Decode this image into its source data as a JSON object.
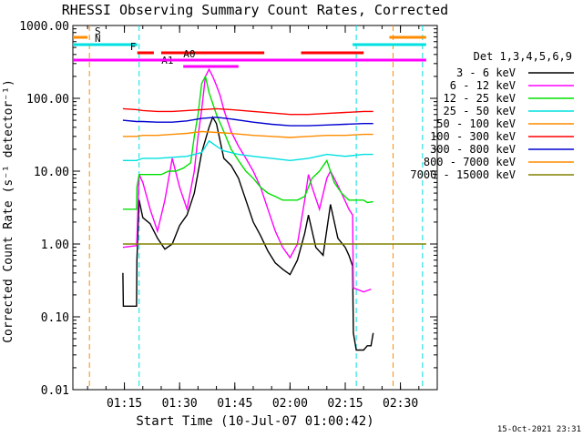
{
  "chart_data": {
    "type": "line",
    "title": "RHESSI Observing Summary Count Rates, Corrected",
    "xlabel": "Start Time (10-Jul-07 01:00:42)",
    "ylabel": "Corrected Count Rate (s⁻¹ detector⁻¹)",
    "yscale": "log",
    "ylim": [
      0.01,
      1000
    ],
    "xlim_minutes": [
      1.0,
      100.0
    ],
    "x_ticks": [
      "01:15",
      "01:30",
      "01:45",
      "02:00",
      "02:15",
      "02:30"
    ],
    "y_ticks": [
      "1000.00",
      "100.00",
      "10.00",
      "1.00",
      "0.10",
      "0.01"
    ],
    "date_stamp": "15-Oct-2021 23:31",
    "legend": {
      "title": "Det 1,3,4,5,6,9",
      "placement": "right"
    },
    "flags": [
      {
        "label": "S",
        "color": "#ff8c00",
        "spans": [
          [
            1,
            5
          ],
          [
            87,
            97
          ]
        ]
      },
      {
        "label": "N",
        "color": "#00e0e0",
        "spans": [
          [
            1,
            18.5
          ],
          [
            77,
            97
          ]
        ]
      },
      {
        "label": "F",
        "color": "#ff0000",
        "spans": [
          [
            18.5,
            23
          ],
          [
            25,
            53
          ],
          [
            63,
            80
          ]
        ]
      },
      {
        "label": "A0",
        "color": "#ff00ff",
        "spans": [
          [
            33,
            43
          ]
        ]
      },
      {
        "label": "A1",
        "color": "#ff00ff",
        "spans": [
          [
            31,
            46
          ]
        ]
      },
      {
        "label": "",
        "color": "#ff00ff",
        "spans": [
          [
            1,
            97
          ]
        ]
      }
    ],
    "vlines": [
      {
        "x": 5.5,
        "color": "#ff8c00"
      },
      {
        "x": 19,
        "color": "#00e0e0"
      },
      {
        "x": 78,
        "color": "#00e0e0"
      },
      {
        "x": 88,
        "color": "#ff8c00"
      },
      {
        "x": 96,
        "color": "#00e0e0"
      }
    ],
    "series": [
      {
        "name": "3 - 6 keV",
        "color": "#000000",
        "x": [
          14.6,
          14.7,
          18.3,
          18.4,
          19,
          20,
          22,
          24,
          26,
          28,
          30,
          32,
          34,
          36,
          38,
          39,
          40,
          42,
          44,
          46,
          48,
          50,
          52,
          54,
          56,
          58,
          60,
          62,
          64,
          65,
          67,
          69,
          71,
          73,
          75,
          76,
          77,
          77.2,
          78,
          80,
          81,
          82,
          82.6
        ],
        "y": [
          0.4,
          0.14,
          0.14,
          0.6,
          4,
          2.3,
          1.9,
          1.2,
          0.85,
          1.0,
          1.8,
          2.5,
          5,
          18,
          40,
          55,
          45,
          15,
          12,
          8,
          4,
          2,
          1.3,
          0.8,
          0.55,
          0.45,
          0.38,
          0.6,
          1.4,
          2.5,
          0.9,
          0.7,
          3.5,
          1.2,
          0.9,
          0.7,
          0.5,
          0.06,
          0.035,
          0.035,
          0.04,
          0.04,
          0.06
        ]
      },
      {
        "name": "6 - 12 keV",
        "color": "#ff00ff",
        "x": [
          14.6,
          18.3,
          18.4,
          19,
          20,
          22,
          24,
          26,
          28,
          30,
          32,
          34,
          35,
          36,
          37,
          38,
          39,
          40,
          41,
          42,
          44,
          46,
          48,
          50,
          52,
          54,
          56,
          58,
          60,
          62,
          64,
          65,
          66,
          68,
          70,
          71,
          72,
          74,
          76,
          77,
          77.2,
          80,
          82
        ],
        "y": [
          0.9,
          0.95,
          1.2,
          9,
          7,
          3,
          1.5,
          4,
          15,
          6,
          3,
          10,
          30,
          70,
          200,
          250,
          200,
          150,
          110,
          70,
          35,
          22,
          15,
          10,
          6,
          3,
          1.5,
          0.9,
          0.65,
          1.0,
          4,
          9,
          6,
          3,
          8,
          10,
          8,
          5,
          3,
          2.5,
          0.25,
          0.22,
          0.24
        ]
      },
      {
        "name": "12 - 25 keV",
        "color": "#00e000",
        "x": [
          14.6,
          16,
          18.3,
          18.4,
          19,
          21,
          23,
          25,
          27,
          29,
          31,
          33,
          34,
          35,
          36,
          37,
          38,
          40,
          42,
          44,
          46,
          48,
          50,
          52,
          54,
          56,
          58,
          60,
          62,
          64,
          66,
          68,
          70,
          72,
          74,
          76,
          78,
          80,
          81,
          82.6
        ],
        "y": [
          3,
          3,
          3,
          6,
          9,
          9,
          9,
          9,
          10,
          10,
          11,
          13,
          30,
          60,
          160,
          200,
          120,
          60,
          35,
          20,
          14,
          10,
          8,
          6,
          5,
          4.5,
          4,
          4,
          4,
          4.5,
          8,
          10,
          14,
          7,
          5,
          4,
          4,
          4,
          3.7,
          3.8
        ]
      },
      {
        "name": "25 - 50 keV",
        "color": "#00e0e0",
        "x": [
          14.6,
          18.3,
          20,
          24,
          28,
          32,
          34,
          36,
          38,
          40,
          42,
          46,
          50,
          55,
          60,
          65,
          70,
          75,
          80,
          82.6
        ],
        "y": [
          14,
          14,
          15,
          15,
          15.5,
          16,
          17,
          18,
          26,
          22,
          19,
          17,
          16,
          15,
          14,
          15,
          17,
          16,
          17,
          17
        ]
      },
      {
        "name": "50 - 100 keV",
        "color": "#ff8c00",
        "x": [
          14.6,
          18.3,
          20,
          24,
          28,
          32,
          36,
          40,
          44,
          50,
          55,
          60,
          65,
          70,
          75,
          80,
          82.6
        ],
        "y": [
          30,
          30,
          31,
          31,
          32,
          33,
          35,
          34,
          33,
          31,
          30,
          29,
          30,
          31,
          31,
          32,
          32
        ]
      },
      {
        "name": "100 - 300 keV",
        "color": "#ff0000",
        "x": [
          14.6,
          18.3,
          20,
          24,
          28,
          32,
          36,
          40,
          44,
          50,
          55,
          60,
          65,
          70,
          75,
          80,
          82.6
        ],
        "y": [
          72,
          70,
          68,
          66,
          66,
          68,
          70,
          72,
          70,
          66,
          63,
          60,
          60,
          62,
          64,
          66,
          66
        ]
      },
      {
        "name": "300 - 800 keV",
        "color": "#0000d0",
        "x": [
          14.6,
          18.3,
          20,
          24,
          28,
          32,
          36,
          40,
          44,
          50,
          55,
          60,
          65,
          70,
          75,
          80,
          82.6
        ],
        "y": [
          50,
          48,
          48,
          47,
          47,
          49,
          53,
          55,
          52,
          47,
          44,
          42,
          42,
          43,
          44,
          45,
          45
        ]
      },
      {
        "name": "800 - 7000 keV",
        "color": "#ff8c00",
        "x": [],
        "y": []
      },
      {
        "name": "7000 - 15000 keV",
        "color": "#808000",
        "x": [
          14.6,
          97
        ],
        "y": [
          1.0,
          1.0
        ]
      }
    ]
  }
}
